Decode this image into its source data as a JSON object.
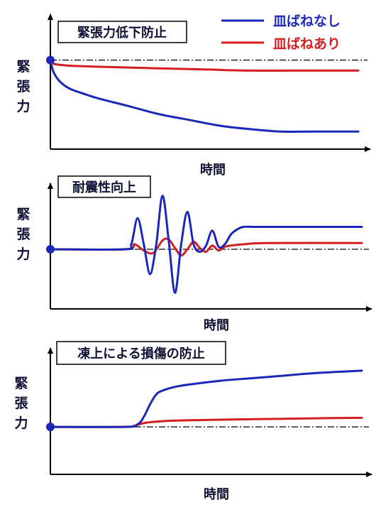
{
  "legend": {
    "entries": [
      {
        "label": "皿ばねなし",
        "color": "#1a27b8"
      },
      {
        "label": "皿ばねあり",
        "color": "#d41e1e"
      }
    ]
  },
  "colors": {
    "without_spring": "#1a27b8",
    "with_spring": "#d41e1e",
    "axis": "#000000",
    "label_text": "#0d1033",
    "reference_line": "#000000"
  },
  "chart_data": [
    {
      "type": "line",
      "title": "緊張力低下防止",
      "ylabel": "緊張力",
      "xlabel": "時間",
      "xlim": [
        0,
        100
      ],
      "ylim": [
        0,
        100
      ],
      "reference_value": 76,
      "start_point": {
        "x": 0,
        "y": 76
      },
      "series": [
        {
          "name": "皿ばねなし",
          "x": [
            0,
            1,
            3,
            6,
            10,
            16,
            25,
            35,
            45,
            55,
            65,
            75,
            85,
            100
          ],
          "values": [
            76,
            66,
            58,
            52,
            48,
            43,
            37,
            30,
            25,
            20,
            17,
            15,
            15,
            15
          ]
        },
        {
          "name": "皿ばねあり",
          "x": [
            0,
            1,
            3,
            8,
            20,
            35,
            50,
            65,
            80,
            100
          ],
          "values": [
            76,
            73,
            72,
            71,
            70,
            69,
            68,
            67,
            67,
            67
          ]
        }
      ]
    },
    {
      "type": "line",
      "title": "耐震性向上",
      "ylabel": "緊張力",
      "xlabel": "時間",
      "xlim": [
        0,
        100
      ],
      "ylim": [
        0,
        100
      ],
      "reference_value": 48,
      "start_point": {
        "x": 0,
        "y": 48
      },
      "series": [
        {
          "name": "皿ばねなし",
          "x": [
            0,
            24,
            26,
            28,
            30,
            32,
            34,
            36,
            38,
            40,
            42,
            44,
            46,
            48,
            50,
            52,
            54,
            56,
            58,
            60,
            62,
            66,
            70,
            100
          ],
          "values": [
            48,
            48,
            52,
            73,
            52,
            28,
            52,
            91,
            55,
            13,
            52,
            78,
            52,
            46,
            51,
            63,
            50,
            52,
            60,
            64,
            66,
            66,
            66,
            66
          ]
        },
        {
          "name": "皿ばねあり",
          "x": [
            0,
            24,
            27,
            30,
            33,
            36,
            38,
            40,
            42,
            44,
            46,
            48,
            50,
            52,
            54,
            56,
            58,
            62,
            70,
            100
          ],
          "values": [
            48,
            48,
            52,
            47,
            45,
            55,
            56,
            49,
            43,
            48,
            54,
            49,
            46,
            51,
            47,
            50,
            51,
            52,
            53,
            53
          ]
        }
      ]
    },
    {
      "type": "line",
      "title": "凍上による損傷の防止",
      "ylabel": "緊張力",
      "xlabel": "時間",
      "xlim": [
        0,
        100
      ],
      "ylim": [
        0,
        100
      ],
      "reference_value": 38,
      "start_point": {
        "x": 0,
        "y": 38
      },
      "series": [
        {
          "name": "皿ばねなし",
          "x": [
            0,
            24,
            28,
            30,
            32,
            34,
            36,
            40,
            45,
            55,
            65,
            75,
            85,
            100
          ],
          "values": [
            38,
            38,
            40,
            46,
            56,
            64,
            67,
            70,
            72,
            75,
            77,
            79,
            81,
            83
          ]
        },
        {
          "name": "皿ばねあり",
          "x": [
            0,
            24,
            27,
            30,
            33,
            40,
            50,
            60,
            75,
            90,
            100
          ],
          "values": [
            38,
            38,
            39,
            41,
            42,
            43,
            43.5,
            44,
            44.5,
            45,
            45.2
          ]
        }
      ]
    }
  ]
}
